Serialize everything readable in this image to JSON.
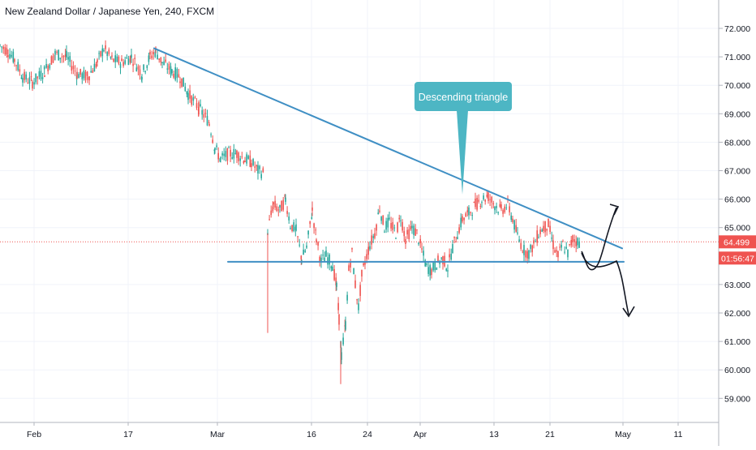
{
  "header": {
    "title": "New Zealand Dollar / Japanese Yen, 240, FXCM"
  },
  "price_axis": {
    "ticks": [
      "72.000",
      "71.000",
      "70.000",
      "69.000",
      "68.000",
      "67.000",
      "66.000",
      "65.000",
      "63.000",
      "62.000",
      "61.000",
      "60.000",
      "59.000"
    ]
  },
  "last_price": {
    "value": "64.499",
    "countdown": "01:56:47",
    "color": "#ef5350"
  },
  "annotation": {
    "text": "Descending triangle",
    "color": "#4db6c4"
  },
  "colors": {
    "up": "#26a69a",
    "down": "#ef5350",
    "trendline": "#3f8fc4",
    "grid": "#f0f3fa"
  },
  "chart_data": {
    "type": "candlestick",
    "symbol": "New Zealand Dollar / Japanese Yen",
    "interval": "240",
    "source": "FXCM",
    "x_tick_labels": [
      "Feb",
      "17",
      "Mar",
      "16",
      "24",
      "Apr",
      "13",
      "21",
      "May",
      "11"
    ],
    "y_range": [
      58.6,
      72.4
    ],
    "last_price": 64.499,
    "path_series": [
      {
        "label": "A",
        "points": [
          [
            0,
            71.4
          ],
          [
            10,
            71.2
          ],
          [
            18,
            70.9
          ],
          [
            28,
            70.3
          ],
          [
            40,
            70.1
          ],
          [
            55,
            70.5
          ],
          [
            68,
            71.1
          ],
          [
            82,
            71.0
          ],
          [
            95,
            70.4
          ],
          [
            108,
            70.3
          ],
          [
            120,
            70.8
          ],
          [
            128,
            71.3
          ],
          [
            138,
            70.9
          ],
          [
            150,
            70.8
          ],
          [
            162,
            71.0
          ],
          [
            175,
            70.4
          ],
          [
            185,
            71.0
          ],
          [
            192,
            71.2
          ],
          [
            200,
            70.8
          ],
          [
            212,
            70.5
          ],
          [
            222,
            70.3
          ],
          [
            232,
            69.7
          ],
          [
            245,
            69.2
          ],
          [
            258,
            68.7
          ],
          [
            265,
            67.8
          ],
          [
            272,
            67.4
          ],
          [
            282,
            67.6
          ],
          [
            292,
            67.6
          ],
          [
            302,
            67.4
          ],
          [
            310,
            67.3
          ],
          [
            318,
            67.0
          ],
          [
            326,
            66.9
          ]
        ]
      },
      {
        "label": "B",
        "points": [
          [
            330,
            64.9
          ],
          [
            337,
            65.8
          ],
          [
            345,
            65.6
          ],
          [
            352,
            66.0
          ],
          [
            358,
            65.1
          ],
          [
            365,
            64.9
          ],
          [
            372,
            63.9
          ],
          [
            378,
            64.3
          ],
          [
            385,
            65.6
          ],
          [
            390,
            64.6
          ],
          [
            396,
            63.8
          ],
          [
            402,
            64.0
          ],
          [
            410,
            63.7
          ],
          [
            415,
            62.9
          ],
          [
            418,
            61.8
          ],
          [
            421,
            60.5
          ],
          [
            426,
            61.6
          ],
          [
            430,
            63.5
          ],
          [
            434,
            64.1
          ],
          [
            438,
            63.0
          ],
          [
            442,
            62.2
          ],
          [
            446,
            63.3
          ],
          [
            450,
            63.8
          ],
          [
            456,
            64.4
          ],
          [
            462,
            64.8
          ],
          [
            468,
            65.7
          ],
          [
            474,
            65.0
          ],
          [
            480,
            65.2
          ],
          [
            488,
            64.8
          ],
          [
            494,
            65.4
          ],
          [
            500,
            64.6
          ],
          [
            508,
            65.0
          ],
          [
            514,
            64.8
          ],
          [
            520,
            64.2
          ],
          [
            526,
            63.6
          ],
          [
            532,
            63.5
          ],
          [
            540,
            63.8
          ],
          [
            546,
            63.9
          ],
          [
            552,
            63.6
          ],
          [
            558,
            64.3
          ],
          [
            564,
            64.8
          ],
          [
            570,
            65.3
          ],
          [
            578,
            65.5
          ],
          [
            586,
            65.8
          ],
          [
            594,
            66.0
          ],
          [
            602,
            66.1
          ],
          [
            610,
            65.8
          ],
          [
            618,
            65.6
          ],
          [
            626,
            65.8
          ],
          [
            632,
            65.3
          ],
          [
            638,
            64.7
          ],
          [
            646,
            64.2
          ],
          [
            652,
            64.1
          ],
          [
            658,
            64.4
          ],
          [
            664,
            64.8
          ],
          [
            670,
            65.0
          ],
          [
            676,
            65.1
          ],
          [
            682,
            64.4
          ],
          [
            688,
            64.0
          ],
          [
            694,
            64.4
          ],
          [
            700,
            64.1
          ],
          [
            706,
            64.6
          ],
          [
            712,
            64.5
          ],
          [
            716,
            64.499
          ]
        ]
      }
    ],
    "lines": [
      {
        "name": "descending resistance",
        "from": [
          190,
          71.3
        ],
        "to": [
          767,
          64.27
        ]
      },
      {
        "name": "horizontal support",
        "from": [
          281,
          63.8
        ],
        "to": [
          769,
          63.8
        ]
      }
    ],
    "projections": [
      "breakout up",
      "breakdown down"
    ]
  }
}
